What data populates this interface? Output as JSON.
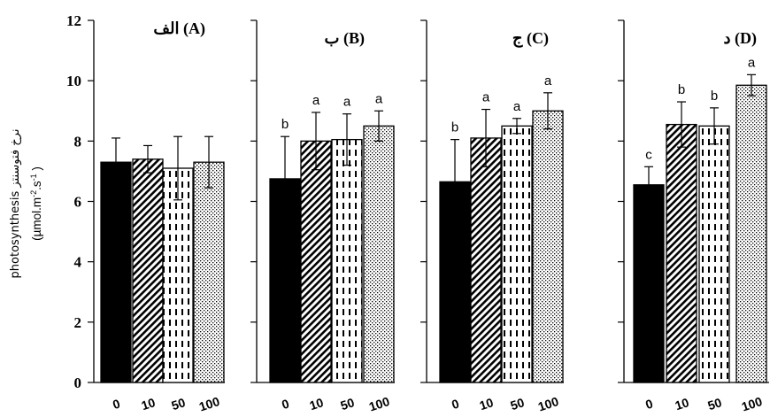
{
  "chart_data": {
    "type": "bar",
    "ylabel_lines": [
      "photosynthesis  نرخ فتوسنتز",
      "(µmol.m-2.s-1 )"
    ],
    "ylim": [
      0,
      12
    ],
    "yticks": [
      "0",
      "2",
      "4",
      "6",
      "8",
      "10",
      "12"
    ],
    "categories": [
      "0",
      "10",
      "50",
      "100"
    ],
    "patterns": [
      "solid-black",
      "diagonal-hatch",
      "dashes",
      "dots"
    ],
    "panels": [
      {
        "title": "الف (A)",
        "values": [
          7.3,
          7.4,
          7.1,
          7.3
        ],
        "errors": [
          0.8,
          0.45,
          1.05,
          0.85
        ],
        "letters": [
          "",
          "",
          "",
          ""
        ]
      },
      {
        "title": "ب (B)",
        "values": [
          6.75,
          8.0,
          8.05,
          8.5
        ],
        "errors": [
          1.4,
          0.95,
          0.85,
          0.5
        ],
        "letters": [
          "b",
          "a",
          "a",
          "a"
        ]
      },
      {
        "title": "ج (C)",
        "values": [
          6.65,
          8.1,
          8.5,
          9.0
        ],
        "errors": [
          1.4,
          0.95,
          0.25,
          0.6
        ],
        "letters": [
          "b",
          "a",
          "a",
          "a"
        ]
      },
      {
        "title": "د (D)",
        "values": [
          6.55,
          8.55,
          8.5,
          9.85
        ],
        "errors": [
          0.6,
          0.75,
          0.6,
          0.35
        ],
        "letters": [
          "c",
          "b",
          "b",
          "a"
        ]
      }
    ]
  }
}
